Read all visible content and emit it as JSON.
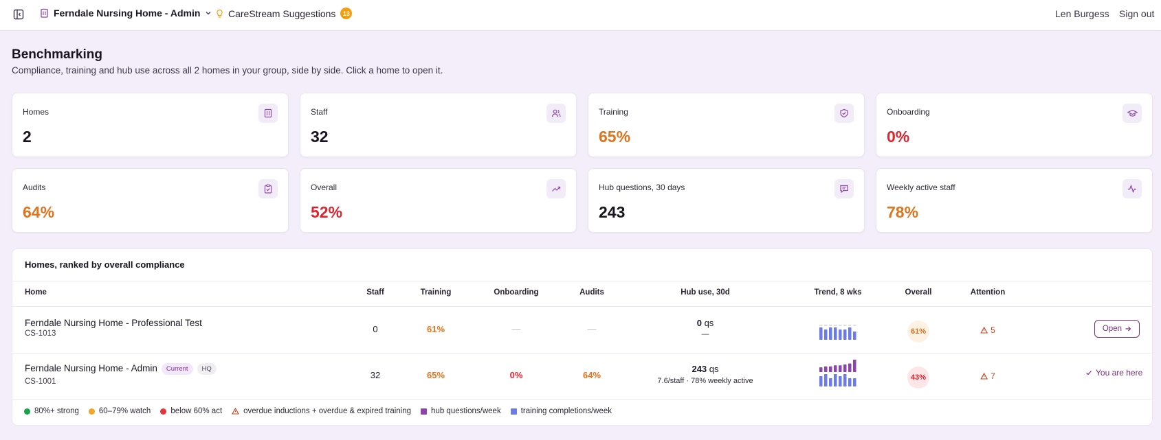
{
  "topbar": {
    "org_name": "Ferndale Nursing Home - Admin",
    "suggestions_label": "CareStream Suggestions",
    "suggestions_count": "13",
    "user_name": "Len Burgess",
    "sign_out_label": "Sign out"
  },
  "header": {
    "title": "Benchmarking",
    "subtitle": "Compliance, training and hub use across all 2 homes in your group, side by side. Click a home to open it."
  },
  "stats": [
    {
      "label": "Homes",
      "value": "2",
      "tone": "dark",
      "icon": "building-icon"
    },
    {
      "label": "Staff",
      "value": "32",
      "tone": "dark",
      "icon": "users-icon"
    },
    {
      "label": "Training",
      "value": "65%",
      "tone": "orange",
      "icon": "shield-check-icon"
    },
    {
      "label": "Onboarding",
      "value": "0%",
      "tone": "red",
      "icon": "graduation-cap-icon"
    },
    {
      "label": "Audits",
      "value": "64%",
      "tone": "orange",
      "icon": "clipboard-check-icon"
    },
    {
      "label": "Overall",
      "value": "52%",
      "tone": "red",
      "icon": "trending-up-icon"
    },
    {
      "label": "Hub questions, 30 days",
      "value": "243",
      "tone": "dark",
      "icon": "message-square-icon"
    },
    {
      "label": "Weekly active staff",
      "value": "78%",
      "tone": "orange",
      "icon": "activity-icon"
    }
  ],
  "table": {
    "title": "Homes, ranked by overall compliance",
    "columns": [
      "Home",
      "Staff",
      "Training",
      "Onboarding",
      "Audits",
      "Hub use, 30d",
      "Trend, 8 wks",
      "Overall",
      "Attention"
    ],
    "rows": [
      {
        "name": "Ferndale Nursing Home - Professional Test",
        "code": "CS-1013",
        "tags": [],
        "staff": "0",
        "training": "61%",
        "onboarding": "—",
        "audits": "—",
        "hub_qs": "0",
        "hub_unit": "qs",
        "hub_detail": "—",
        "trend_hub": [
          0,
          0,
          0,
          0,
          0,
          0,
          0,
          0
        ],
        "trend_training": [
          6,
          5,
          6,
          6,
          5,
          5,
          6,
          4
        ],
        "overall": "61%",
        "attention": "5",
        "action": "Open"
      },
      {
        "name": "Ferndale Nursing Home - Admin",
        "code": "CS-1001",
        "tags": [
          "Current",
          "HQ"
        ],
        "staff": "32",
        "training": "65%",
        "onboarding": "0%",
        "audits": "64%",
        "hub_qs": "243",
        "hub_unit": "qs",
        "hub_detail": "7.6/staff · 78% weekly active",
        "trend_hub": [
          5,
          6,
          6,
          7,
          7,
          8,
          9,
          13
        ],
        "trend_training": [
          5,
          6,
          4,
          6,
          5,
          6,
          4,
          4
        ],
        "overall": "43%",
        "attention": "7",
        "action": "You are here"
      }
    ]
  },
  "legend": [
    {
      "label": "80%+ strong",
      "color": "#16a34a",
      "shape": "dot"
    },
    {
      "label": "60–79% watch",
      "color": "#f5a524",
      "shape": "dot"
    },
    {
      "label": "below 60% act",
      "color": "#e5343c",
      "shape": "dot"
    },
    {
      "label": "overdue inductions + overdue & expired training",
      "color": "#c4421d",
      "shape": "warning-icon"
    },
    {
      "label": "hub questions/week",
      "color": "#8e44ad",
      "shape": "square"
    },
    {
      "label": "training completions/week",
      "color": "#6b7bea",
      "shape": "square"
    }
  ],
  "colors": {
    "accent": "#7a2e7e",
    "orange": "#e0731c",
    "red": "#e0242e",
    "hub_bar": "#8e44ad",
    "training_bar": "#6b7bea"
  }
}
